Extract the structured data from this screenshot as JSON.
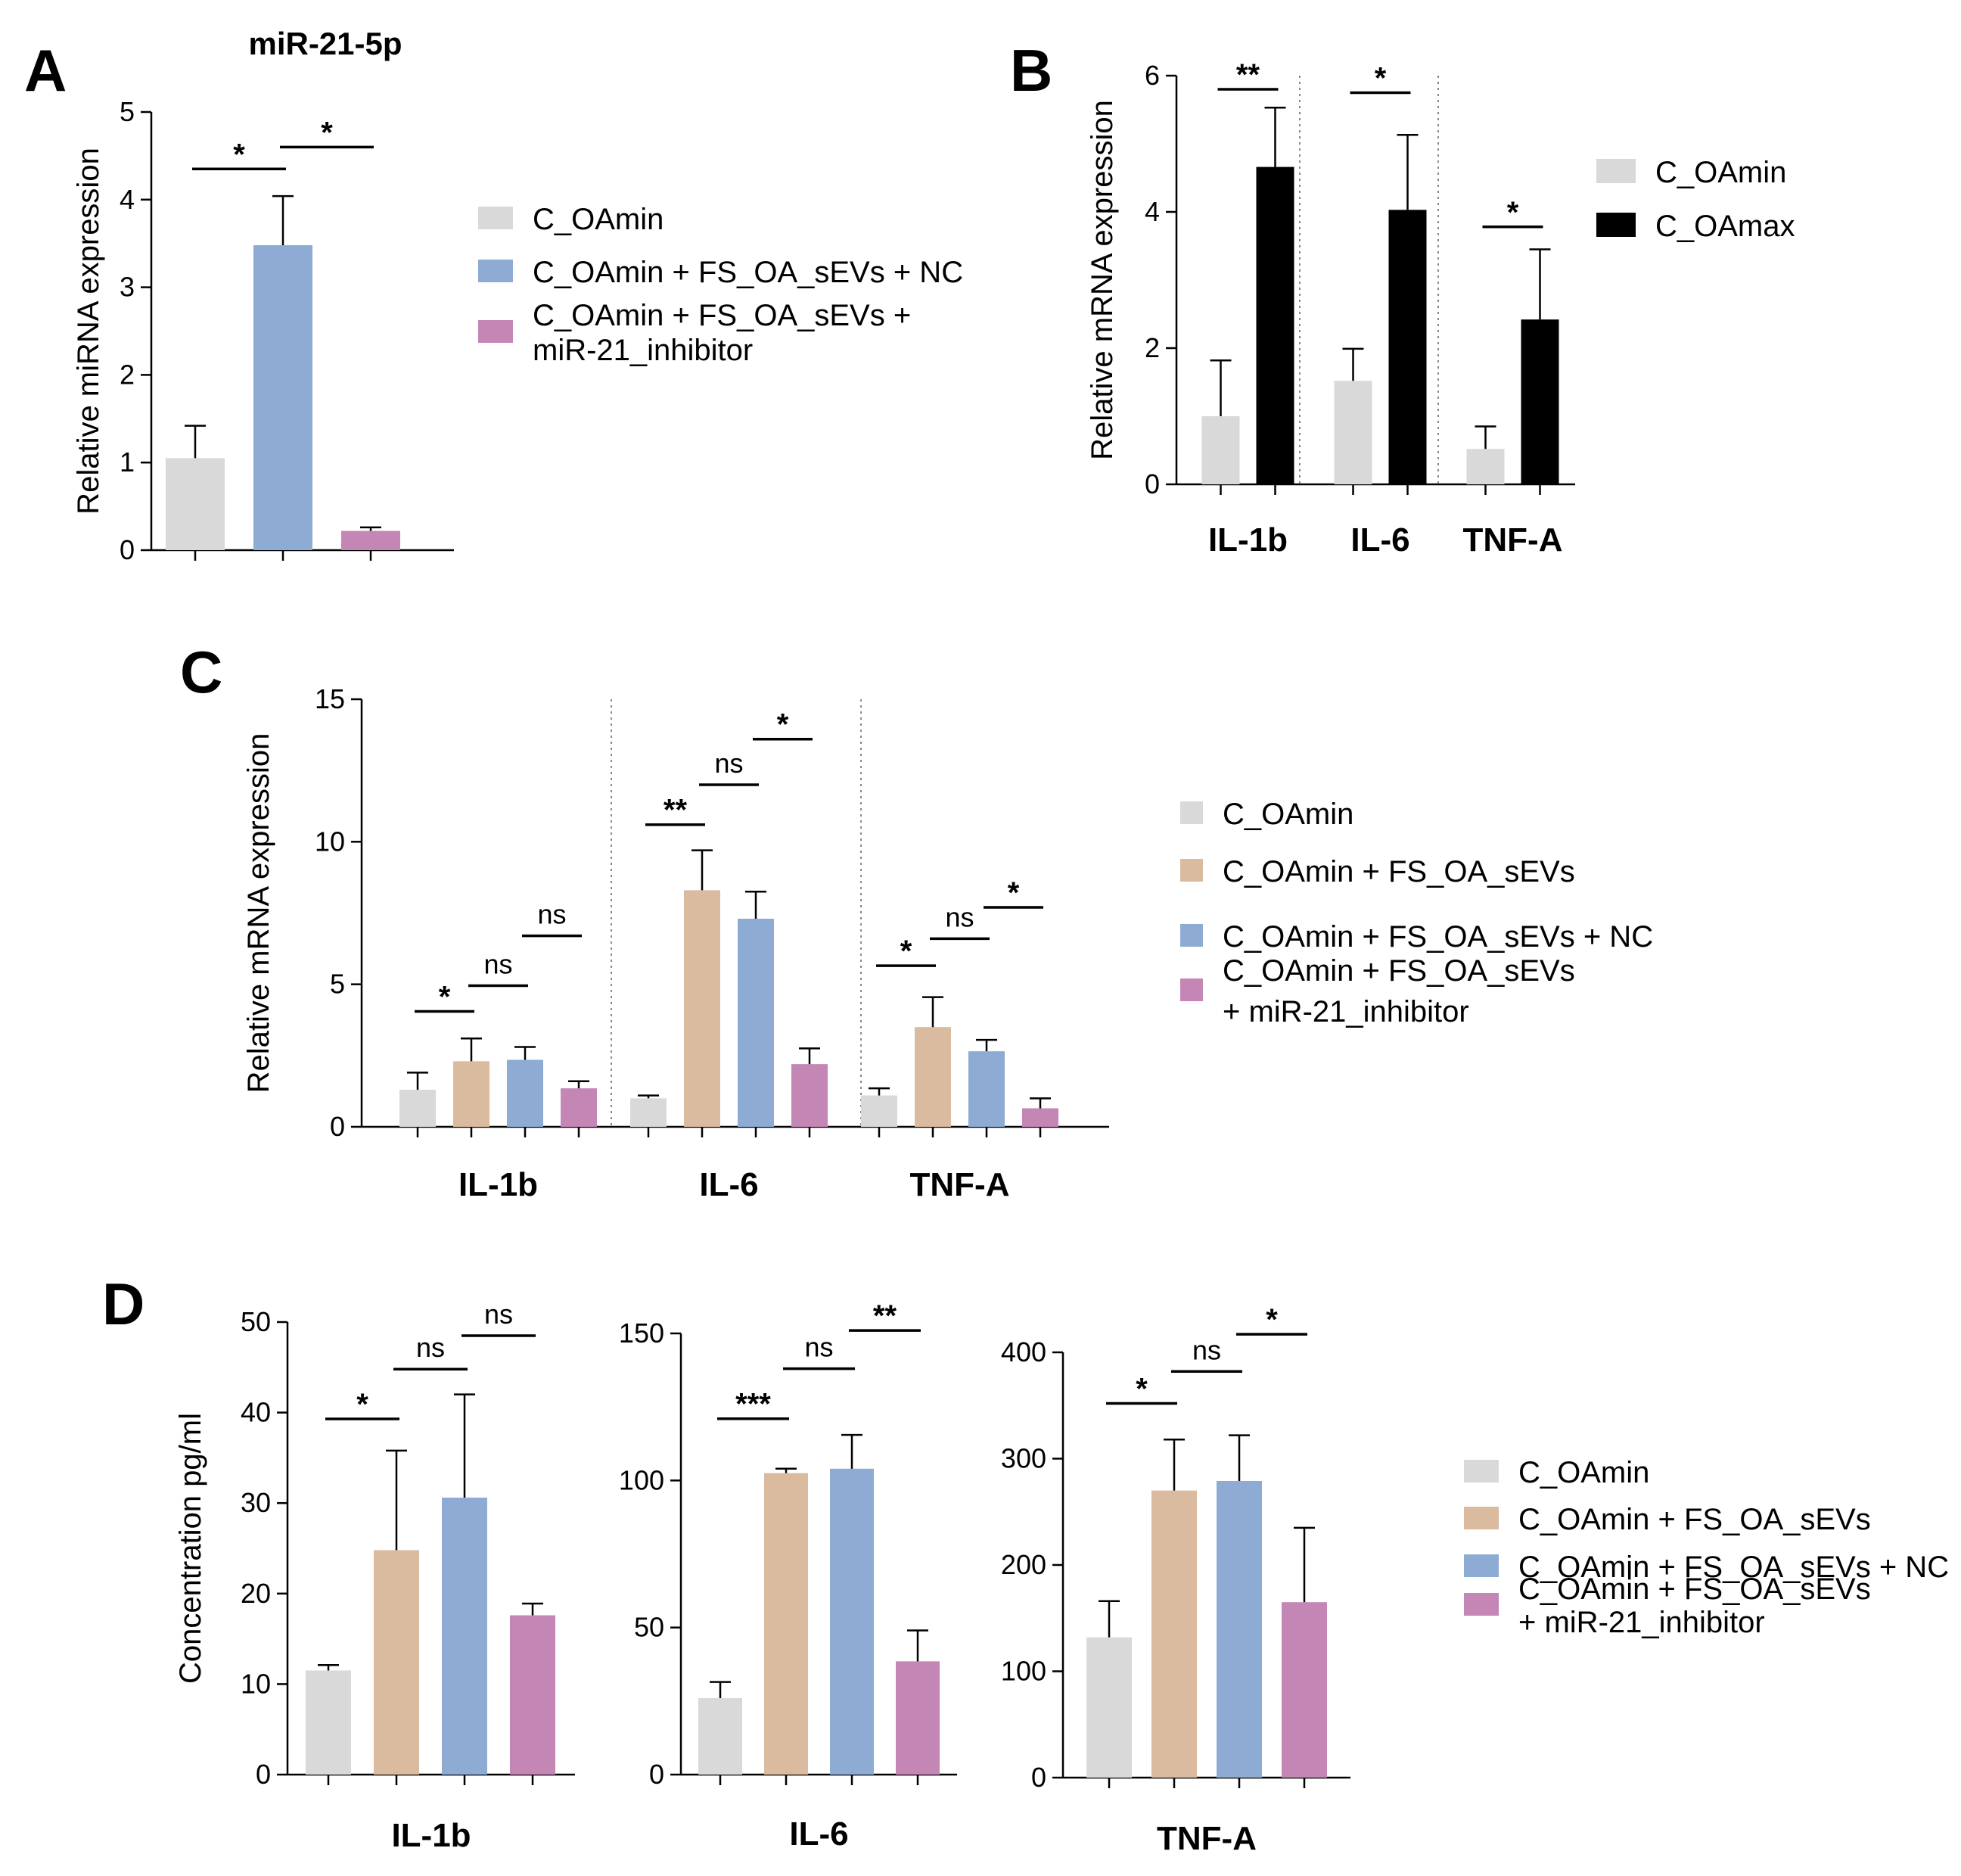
{
  "colors": {
    "C_OAmin": "#d9d9d9",
    "C_OAmax": "#000000",
    "FS_OA_sEVs": "#dbbba0",
    "NC": "#8eabd4",
    "inhibitor": "#c386b5"
  },
  "chart_data": [
    {
      "id": "A",
      "panel_label": "A",
      "type": "bar",
      "title": "miR-21-5p",
      "ylabel": "Relative miRNA expression",
      "xlabel": "",
      "ylim": [
        0,
        5
      ],
      "yticks": [
        0,
        1,
        2,
        3,
        4,
        5
      ],
      "categories": [
        ""
      ],
      "series": [
        {
          "name": "C_OAmin",
          "color_key": "C_OAmin",
          "values": [
            1.05
          ],
          "errors": [
            0.37
          ]
        },
        {
          "name": "C_OAmin + FS_OA_sEVs + NC",
          "color_key": "NC",
          "values": [
            3.48
          ],
          "errors": [
            0.56
          ]
        },
        {
          "name": "C_OAmin + FS_OA_sEVs + miR-21_inhibitor",
          "color_key": "inhibitor",
          "values": [
            0.22
          ],
          "errors": [
            0.04
          ]
        }
      ],
      "legend": [
        "C_OAmin",
        "C_OAmin + FS_OA_sEVs + NC",
        "C_OAmin + FS_OA_sEVs +\nmiR-21_inhibitor"
      ],
      "significance": [
        {
          "category": 0,
          "from": 0,
          "to": 1,
          "label": "*",
          "y": 4.35
        },
        {
          "category": 0,
          "from": 1,
          "to": 2,
          "label": "*",
          "y": 4.6
        }
      ]
    },
    {
      "id": "B",
      "panel_label": "B",
      "type": "bar",
      "title": "",
      "ylabel": "Relative mRNA expression",
      "xlabel": "",
      "ylim": [
        0,
        6
      ],
      "yticks": [
        0,
        2,
        4,
        6
      ],
      "categories": [
        "IL-1b",
        "IL-6",
        "TNF-A"
      ],
      "series": [
        {
          "name": "C_OAmin",
          "color_key": "C_OAmin",
          "values": [
            1.0,
            1.52,
            0.52
          ],
          "errors": [
            0.82,
            0.47,
            0.33
          ]
        },
        {
          "name": "C_OAmax",
          "color_key": "C_OAmax",
          "values": [
            4.66,
            4.03,
            2.42
          ],
          "errors": [
            0.87,
            1.1,
            1.03
          ]
        }
      ],
      "legend": [
        "C_OAmin",
        "C_OAmax"
      ],
      "significance": [
        {
          "category": 0,
          "from": 0,
          "to": 1,
          "label": "**",
          "y": 5.8
        },
        {
          "category": 1,
          "from": 0,
          "to": 1,
          "label": "*",
          "y": 5.75
        },
        {
          "category": 2,
          "from": 0,
          "to": 1,
          "label": "*",
          "y": 3.78
        }
      ]
    },
    {
      "id": "C",
      "panel_label": "C",
      "type": "bar",
      "title": "",
      "ylabel": "Relative mRNA expression",
      "xlabel": "",
      "ylim": [
        0,
        15
      ],
      "yticks": [
        0,
        5,
        10,
        15
      ],
      "categories": [
        "IL-1b",
        "IL-6",
        "TNF-A"
      ],
      "series": [
        {
          "name": "C_OAmin",
          "color_key": "C_OAmin",
          "values": [
            1.3,
            1.0,
            1.1
          ],
          "errors": [
            0.6,
            0.1,
            0.25
          ]
        },
        {
          "name": "C_OAmin + FS_OA_sEVs",
          "color_key": "FS_OA_sEVs",
          "values": [
            2.3,
            8.3,
            3.5
          ],
          "errors": [
            0.8,
            1.4,
            1.05
          ]
        },
        {
          "name": "C_OAmin + FS_OA_sEVs + NC",
          "color_key": "NC",
          "values": [
            2.35,
            7.3,
            2.65
          ],
          "errors": [
            0.45,
            0.95,
            0.4
          ]
        },
        {
          "name": "C_OAmin + FS_OA_sEVs + miR-21_inhibitor",
          "color_key": "inhibitor",
          "values": [
            1.35,
            2.2,
            0.65
          ],
          "errors": [
            0.25,
            0.55,
            0.35
          ]
        }
      ],
      "legend": [
        "C_OAmin",
        "C_OAmin + FS_OA_sEVs",
        "C_OAmin + FS_OA_sEVs + NC",
        "C_OAmin + FS_OA_sEVs\n+ miR-21_inhibitor"
      ],
      "significance": [
        {
          "category": 0,
          "from": 0,
          "to": 1,
          "label": "*",
          "y": 4.05
        },
        {
          "category": 0,
          "from": 1,
          "to": 2,
          "label": "ns",
          "y": 4.95
        },
        {
          "category": 0,
          "from": 2,
          "to": 3,
          "label": "ns",
          "y": 6.7
        },
        {
          "category": 1,
          "from": 0,
          "to": 1,
          "label": "**",
          "y": 10.6
        },
        {
          "category": 1,
          "from": 1,
          "to": 2,
          "label": "ns",
          "y": 12.0
        },
        {
          "category": 1,
          "from": 2,
          "to": 3,
          "label": "*",
          "y": 13.6
        },
        {
          "category": 2,
          "from": 0,
          "to": 1,
          "label": "*",
          "y": 5.65
        },
        {
          "category": 2,
          "from": 1,
          "to": 2,
          "label": "ns",
          "y": 6.6
        },
        {
          "category": 2,
          "from": 2,
          "to": 3,
          "label": "*",
          "y": 7.7
        }
      ]
    },
    {
      "id": "D1",
      "panel_label": "D",
      "type": "bar",
      "title": "",
      "ylabel": "Concentration pg/ml",
      "xlabel": "IL-1b",
      "ylim": [
        0,
        50
      ],
      "yticks": [
        0,
        10,
        20,
        30,
        40,
        50
      ],
      "categories": [
        ""
      ],
      "series": [
        {
          "name": "C_OAmin",
          "color_key": "C_OAmin",
          "values": [
            11.5
          ],
          "errors": [
            0.6
          ]
        },
        {
          "name": "C_OAmin + FS_OA_sEVs",
          "color_key": "FS_OA_sEVs",
          "values": [
            24.8
          ],
          "errors": [
            11.0
          ]
        },
        {
          "name": "C_OAmin + FS_OA_sEVs + NC",
          "color_key": "NC",
          "values": [
            30.6
          ],
          "errors": [
            11.4
          ]
        },
        {
          "name": "C_OAmin + FS_OA_sEVs + miR-21_inhibitor",
          "color_key": "inhibitor",
          "values": [
            17.6
          ],
          "errors": [
            1.3
          ]
        }
      ],
      "legend": [],
      "significance": [
        {
          "category": 0,
          "from": 0,
          "to": 1,
          "label": "*",
          "y": 39.3
        },
        {
          "category": 0,
          "from": 1,
          "to": 2,
          "label": "ns",
          "y": 44.8
        },
        {
          "category": 0,
          "from": 2,
          "to": 3,
          "label": "ns",
          "y": 48.5
        }
      ]
    },
    {
      "id": "D2",
      "panel_label": "",
      "type": "bar",
      "title": "",
      "ylabel": "",
      "xlabel": "IL-6",
      "ylim": [
        0,
        150
      ],
      "yticks": [
        0,
        50,
        100,
        150
      ],
      "categories": [
        ""
      ],
      "series": [
        {
          "name": "C_OAmin",
          "color_key": "C_OAmin",
          "values": [
            26
          ],
          "errors": [
            5.5
          ]
        },
        {
          "name": "C_OAmin + FS_OA_sEVs",
          "color_key": "FS_OA_sEVs",
          "values": [
            102.5
          ],
          "errors": [
            1.5
          ]
        },
        {
          "name": "C_OAmin + FS_OA_sEVs + NC",
          "color_key": "NC",
          "values": [
            104
          ],
          "errors": [
            11.5
          ]
        },
        {
          "name": "C_OAmin + FS_OA_sEVs + miR-21_inhibitor",
          "color_key": "inhibitor",
          "values": [
            38.5
          ],
          "errors": [
            10.5
          ]
        }
      ],
      "legend": [],
      "significance": [
        {
          "category": 0,
          "from": 0,
          "to": 1,
          "label": "***",
          "y": 121
        },
        {
          "category": 0,
          "from": 1,
          "to": 2,
          "label": "ns",
          "y": 138
        },
        {
          "category": 0,
          "from": 2,
          "to": 3,
          "label": "**",
          "y": 151
        }
      ]
    },
    {
      "id": "D3",
      "panel_label": "",
      "type": "bar",
      "title": "",
      "ylabel": "",
      "xlabel": "TNF-A",
      "ylim": [
        0,
        400
      ],
      "yticks": [
        0,
        100,
        200,
        300,
        400
      ],
      "categories": [
        ""
      ],
      "series": [
        {
          "name": "C_OAmin",
          "color_key": "C_OAmin",
          "values": [
            132
          ],
          "errors": [
            34
          ]
        },
        {
          "name": "C_OAmin + FS_OA_sEVs",
          "color_key": "FS_OA_sEVs",
          "values": [
            270
          ],
          "errors": [
            48
          ]
        },
        {
          "name": "C_OAmin + FS_OA_sEVs + NC",
          "color_key": "NC",
          "values": [
            279
          ],
          "errors": [
            43
          ]
        },
        {
          "name": "C_OAmin + FS_OA_sEVs + miR-21_inhibitor",
          "color_key": "inhibitor",
          "values": [
            165
          ],
          "errors": [
            70
          ]
        }
      ],
      "legend": [
        "C_OAmin",
        "C_OAmin + FS_OA_sEVs",
        "C_OAmin + FS_OA_sEVs + NC",
        "C_OAmin + FS_OA_sEVs\n+ miR-21_inhibitor"
      ],
      "significance": [
        {
          "category": 0,
          "from": 0,
          "to": 1,
          "label": "*",
          "y": 352
        },
        {
          "category": 0,
          "from": 1,
          "to": 2,
          "label": "ns",
          "y": 382
        },
        {
          "category": 0,
          "from": 2,
          "to": 3,
          "label": "*",
          "y": 417
        }
      ]
    }
  ]
}
